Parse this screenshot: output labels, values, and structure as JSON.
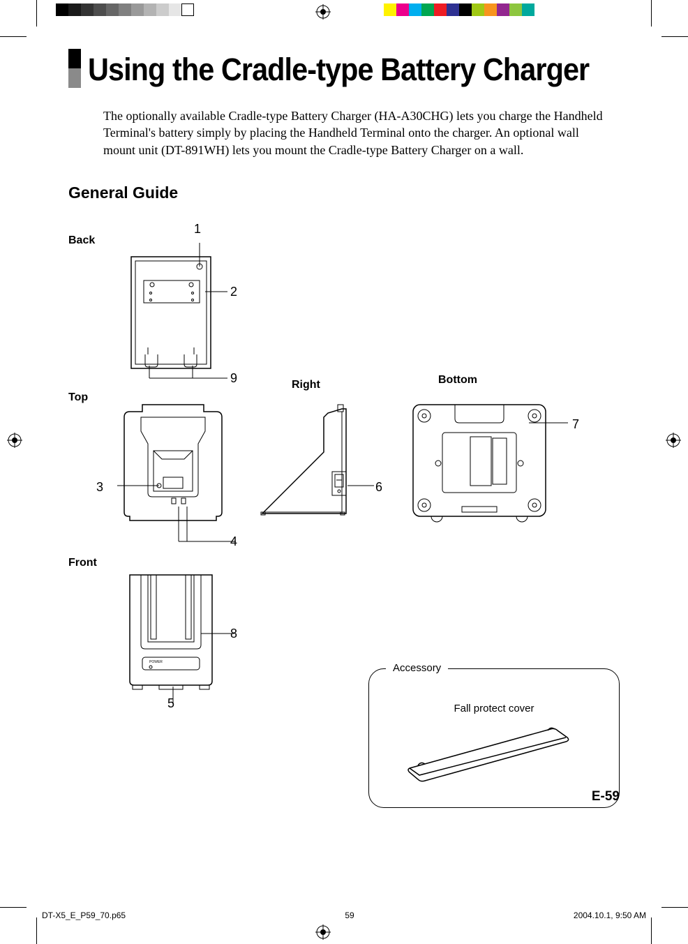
{
  "title": "Using the Cradle-type Battery Charger",
  "intro": "The optionally available Cradle-type Battery Charger (HA-A30CHG) lets you charge the Handheld Terminal's battery simply by placing the Handheld Terminal onto the charger. An optional wall mount unit (DT-891WH) lets you mount the Cradle-type Battery Charger on a wall.",
  "section_heading": "General Guide",
  "views": {
    "back": "Back",
    "top": "Top",
    "front": "Front",
    "right": "Right",
    "bottom": "Bottom"
  },
  "callouts": {
    "n1": "1",
    "n2": "2",
    "n3": "3",
    "n4": "4",
    "n5": "5",
    "n6": "6",
    "n7": "7",
    "n8": "8",
    "n9": "9"
  },
  "accessory": {
    "legend": "Accessory",
    "item": "Fall protect cover"
  },
  "page_number": "E-59",
  "slug": {
    "file": "DT-X5_E_P59_70.p65",
    "page": "59",
    "date": "2004.10.1, 9:50 AM"
  },
  "colors": {
    "title_gray": "#8a8a8a",
    "black": "#000000",
    "white": "#ffffff"
  },
  "color_bar_left": [
    "#000000",
    "#1a1a1a",
    "#333333",
    "#4d4d4d",
    "#666666",
    "#808080",
    "#999999",
    "#b3b3b3",
    "#cccccc",
    "#e6e6e6",
    "#ffffff"
  ],
  "color_bar_right": [
    "#fff200",
    "#ec008c",
    "#00aeef",
    "#00a651",
    "#ed1c24",
    "#2e3192",
    "#000000",
    "#a0c814",
    "#f7941d",
    "#92278f",
    "#8dc63f",
    "#00a99d"
  ]
}
